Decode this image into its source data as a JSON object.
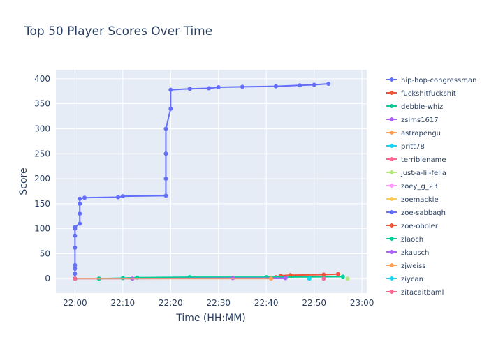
{
  "chart_data": {
    "type": "line",
    "title": "Top 50 Player Scores Over Time",
    "x_label": "Time (HH:MM)",
    "y_label": "Score",
    "xlim": [
      "21:56",
      "23:01"
    ],
    "xticks": [
      "22:00",
      "22:10",
      "22:20",
      "22:30",
      "22:40",
      "22:50",
      "23:00"
    ],
    "ylim": [
      -29,
      418
    ],
    "yticks": [
      0,
      50,
      100,
      150,
      200,
      250,
      300,
      350,
      400
    ],
    "grid": true,
    "legend": "right",
    "series": [
      {
        "name": "hip-hop-congressman",
        "color": "#636efa",
        "x": [
          "22:00",
          "22:00",
          "22:00",
          "22:00",
          "22:00",
          "22:00",
          "22:00",
          "22:00",
          "22:01",
          "22:01",
          "22:01",
          "22:01",
          "22:02",
          "22:09",
          "22:10",
          "22:19",
          "22:19",
          "22:19",
          "22:19",
          "22:20",
          "22:20",
          "22:24",
          "22:28",
          "22:30",
          "22:35",
          "22:42",
          "22:47",
          "22:50",
          "22:53"
        ],
        "values": [
          0,
          10,
          20,
          27,
          62,
          86,
          100,
          103,
          110,
          130,
          150,
          160,
          162,
          163,
          165,
          166,
          200,
          250,
          300,
          340,
          378,
          380,
          381,
          383,
          384,
          385,
          387,
          388,
          390
        ]
      },
      {
        "name": "fuckshitfuckshit",
        "color": "#EF553B",
        "x": [
          "22:42",
          "22:43",
          "22:45",
          "22:52",
          "22:55"
        ],
        "values": [
          3,
          6,
          7,
          8,
          9
        ]
      },
      {
        "name": "debbie-whiz",
        "color": "#00cc96",
        "x": [
          "22:05",
          "22:10",
          "22:13",
          "22:24",
          "22:40",
          "22:56"
        ],
        "values": [
          0,
          1,
          2,
          3,
          3,
          4
        ]
      },
      {
        "name": "zsims1617",
        "color": "#ab63fa",
        "x": [
          "22:00",
          "22:12",
          "22:33",
          "22:44"
        ],
        "values": [
          0,
          0,
          1,
          1
        ]
      },
      {
        "name": "astrapengu",
        "color": "#FFA15A",
        "x": [
          "22:00",
          "22:41"
        ],
        "values": [
          0,
          0
        ]
      },
      {
        "name": "pritt78",
        "color": "#19d3f3",
        "x": [
          "22:49"
        ],
        "values": [
          0
        ]
      },
      {
        "name": "terriblename",
        "color": "#FF6692",
        "x": [
          "22:52"
        ],
        "values": [
          0
        ]
      },
      {
        "name": "just-a-lil-fella",
        "color": "#B6E880",
        "x": [
          "22:57"
        ],
        "values": [
          0
        ]
      },
      {
        "name": "zoey_g_23",
        "color": "#FF97FF",
        "x": [
          "22:00"
        ],
        "values": [
          0
        ]
      },
      {
        "name": "zoemackie",
        "color": "#FECB52",
        "x": [
          "22:00"
        ],
        "values": [
          0
        ]
      },
      {
        "name": "zoe-sabbagh",
        "color": "#636efa",
        "x": [
          "22:00"
        ],
        "values": [
          0
        ]
      },
      {
        "name": "zoe-oboler",
        "color": "#EF553B",
        "x": [
          "22:00"
        ],
        "values": [
          0
        ]
      },
      {
        "name": "zlaoch",
        "color": "#00cc96",
        "x": [
          "22:00"
        ],
        "values": [
          0
        ]
      },
      {
        "name": "zkausch",
        "color": "#ab63fa",
        "x": [
          "22:00"
        ],
        "values": [
          0
        ]
      },
      {
        "name": "zjweiss",
        "color": "#FFA15A",
        "x": [
          "22:00"
        ],
        "values": [
          0
        ]
      },
      {
        "name": "ziycan",
        "color": "#19d3f3",
        "x": [
          "22:00"
        ],
        "values": [
          0
        ]
      },
      {
        "name": "zitacaitbaml",
        "color": "#FF6692",
        "x": [
          "22:00"
        ],
        "values": [
          0
        ]
      }
    ]
  }
}
